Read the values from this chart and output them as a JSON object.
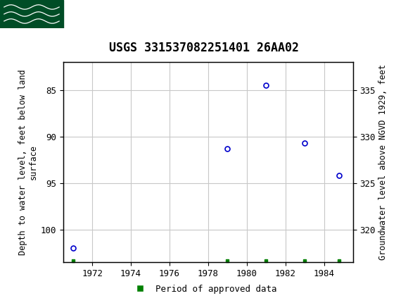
{
  "title": "USGS 331537082251401 26AA02",
  "header_bg_color": "#006633",
  "header_text_color": "#ffffff",
  "plot_bg_color": "#ffffff",
  "grid_color": "#c8c8c8",
  "point_color": "#0000cc",
  "point_marker": "o",
  "point_size": 5,
  "point_facecolor": "none",
  "ylabel_left": "Depth to water level, feet below land\nsurface",
  "ylabel_right": "Groundwater level above NGVD 1929, feet",
  "xlim": [
    1970.5,
    1985.5
  ],
  "ylim_left": [
    82.0,
    103.5
  ],
  "ylim_right": [
    316.5,
    338.0
  ],
  "yticks_left": [
    85,
    90,
    95,
    100
  ],
  "yticks_right": [
    335,
    330,
    325,
    320
  ],
  "xticks": [
    1972,
    1974,
    1976,
    1978,
    1980,
    1982,
    1984
  ],
  "data_x": [
    1971.0,
    1979.0,
    1981.0,
    1983.0,
    1984.8
  ],
  "data_y": [
    102.0,
    91.3,
    84.5,
    90.7,
    94.2
  ],
  "approved_x": [
    1971.0,
    1979.0,
    1981.0,
    1983.0,
    1984.8
  ],
  "legend_label": "Period of approved data",
  "legend_color": "#008000",
  "font_family": "monospace",
  "title_fontsize": 12,
  "axis_label_fontsize": 8.5,
  "tick_fontsize": 9
}
